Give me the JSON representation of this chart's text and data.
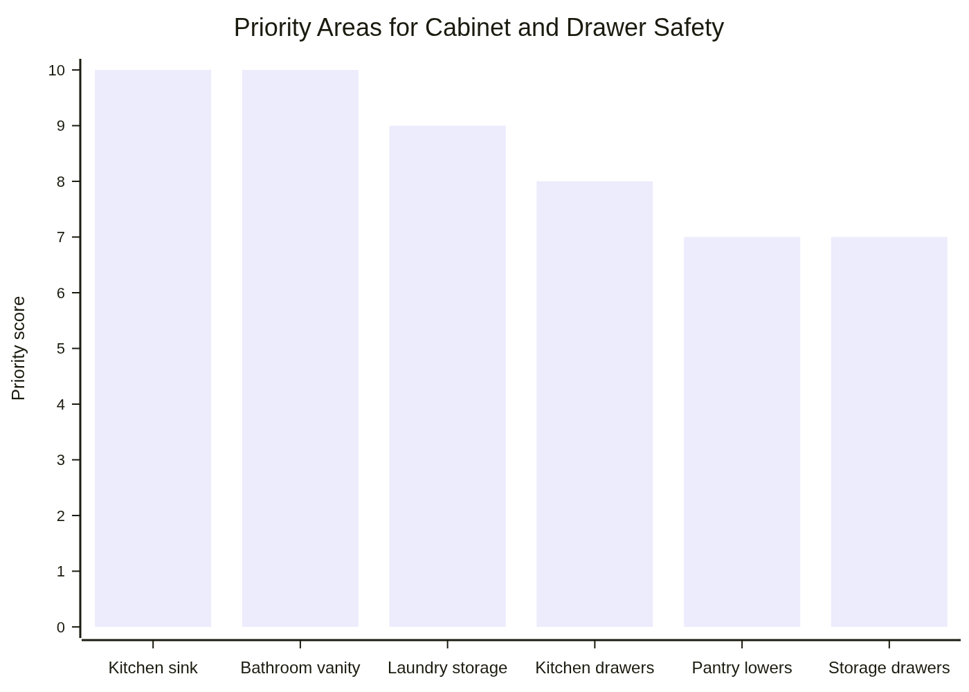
{
  "chart_data": {
    "type": "bar",
    "title": "Priority Areas for Cabinet and Drawer Safety",
    "ylabel": "Priority score",
    "categories": [
      "Kitchen sink",
      "Bathroom vanity",
      "Laundry storage",
      "Kitchen drawers",
      "Pantry lowers",
      "Storage drawers"
    ],
    "values": [
      10,
      10,
      9,
      8,
      7,
      7
    ],
    "color": "#ececfc",
    "ylim": [
      -0.2,
      10.2
    ],
    "yticks": [
      0,
      1,
      2,
      3,
      4,
      5,
      6,
      7,
      8,
      9,
      10
    ],
    "grid": false
  }
}
